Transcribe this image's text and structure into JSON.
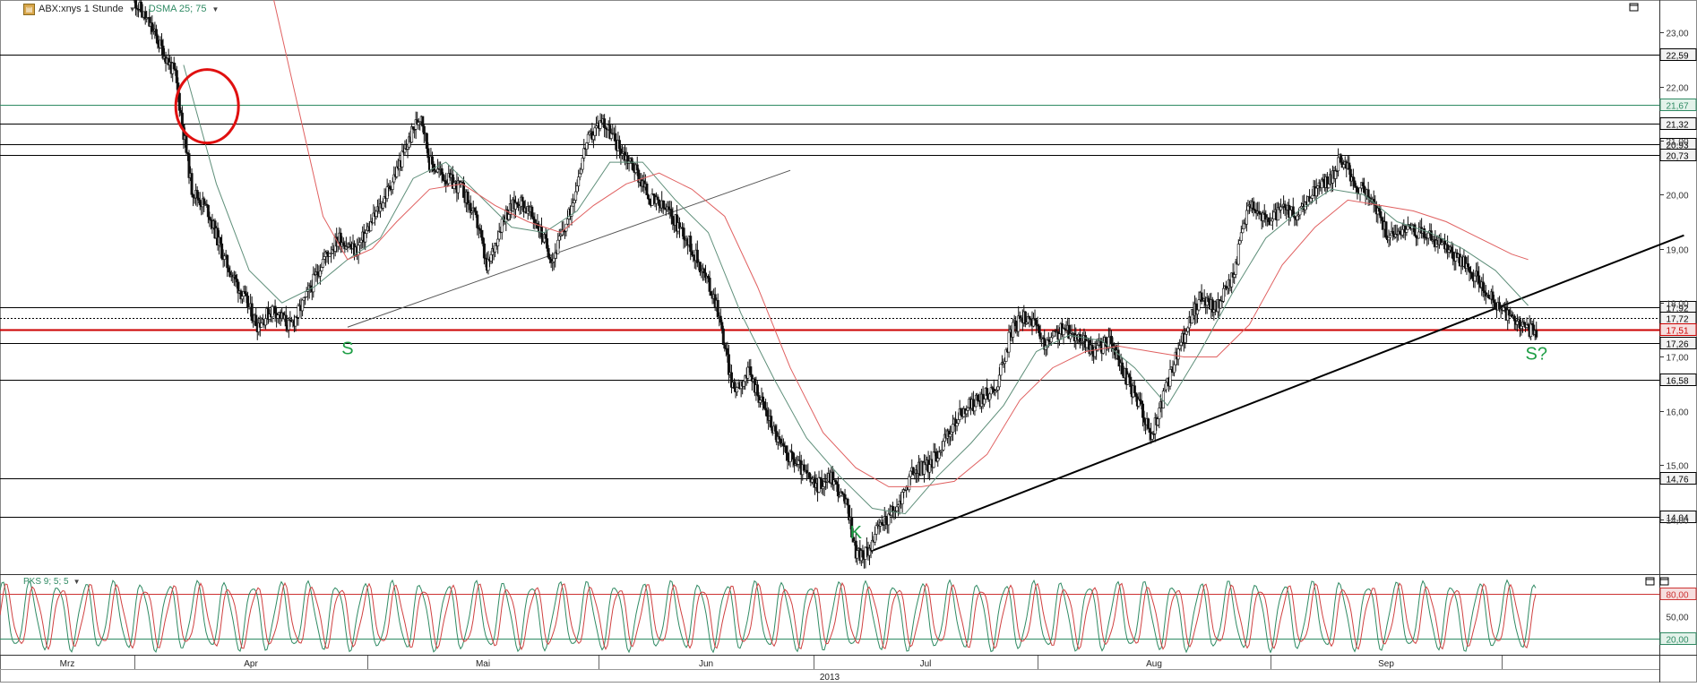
{
  "header": {
    "symbol_label": "ABX:xnys 1 Stunde",
    "indicator_label": "DSMA 25; 75",
    "oscillator_label": "PKS 9; 5; 5"
  },
  "chart_data": [
    {
      "type": "candlestick",
      "title": "ABX:xnys 1 Stunde",
      "ylim": [
        13.0,
        23.6
      ],
      "y_ticks": [
        "23,00",
        "22,00",
        "21,00",
        "20,00",
        "19,00",
        "18,00",
        "17,00",
        "16,00",
        "15,00",
        "14,00"
      ],
      "x_labels": [
        "Mrz",
        "Apr",
        "Mai",
        "Jun",
        "Jul",
        "Aug",
        "Sep"
      ],
      "year_label": "2013",
      "horizontal_levels": [
        {
          "label": "22,59",
          "value": 22.59,
          "color": "#000000"
        },
        {
          "label": "21,67",
          "value": 21.67,
          "color": "#2f8a63"
        },
        {
          "label": "21,32",
          "value": 21.32,
          "color": "#000000"
        },
        {
          "label": "20,93",
          "value": 20.93,
          "color": "#000000"
        },
        {
          "label": "20,73",
          "value": 20.73,
          "color": "#000000"
        },
        {
          "label": "17,92",
          "value": 17.92,
          "color": "#000000"
        },
        {
          "label": "17,72",
          "value": 17.72,
          "color": "#000000",
          "dotted": true
        },
        {
          "label": "17,51",
          "value": 17.51,
          "color": "#cc0000"
        },
        {
          "label": "17,26",
          "value": 17.26,
          "color": "#000000"
        },
        {
          "label": "16,58",
          "value": 16.58,
          "color": "#000000"
        },
        {
          "label": "14,76",
          "value": 14.76,
          "color": "#000000"
        },
        {
          "label": "14,04",
          "value": 14.04,
          "color": "#000000"
        }
      ],
      "price_path": [
        [
          0.0,
          23.6
        ],
        [
          2,
          23.1
        ],
        [
          5,
          22.2
        ],
        [
          7,
          20.1
        ],
        [
          9,
          19.7
        ],
        [
          11,
          18.8
        ],
        [
          13,
          18.2
        ],
        [
          15,
          17.6
        ],
        [
          17,
          17.9
        ],
        [
          19,
          17.55
        ],
        [
          21,
          18.1
        ],
        [
          23,
          18.8
        ],
        [
          25,
          19.2
        ],
        [
          27,
          18.95
        ],
        [
          29,
          19.5
        ],
        [
          31,
          20.1
        ],
        [
          33,
          20.8
        ],
        [
          34,
          21.2
        ],
        [
          35,
          21.5
        ],
        [
          36,
          20.6
        ],
        [
          38,
          20.3
        ],
        [
          40,
          20.1
        ],
        [
          42,
          19.4
        ],
        [
          43,
          18.6
        ],
        [
          45,
          19.6
        ],
        [
          47,
          19.9
        ],
        [
          49,
          19.5
        ],
        [
          51,
          18.8
        ],
        [
          53,
          19.6
        ],
        [
          55,
          20.9
        ],
        [
          57,
          21.4
        ],
        [
          59,
          20.9
        ],
        [
          61,
          20.5
        ],
        [
          63,
          19.9
        ],
        [
          65,
          19.7
        ],
        [
          67,
          19.3
        ],
        [
          69,
          18.7
        ],
        [
          71,
          18.0
        ],
        [
          73,
          16.4
        ],
        [
          75,
          16.7
        ],
        [
          77,
          16.0
        ],
        [
          79,
          15.3
        ],
        [
          81,
          15.0
        ],
        [
          83,
          14.6
        ],
        [
          85,
          14.8
        ],
        [
          87,
          14.2
        ],
        [
          88,
          13.4
        ],
        [
          89,
          13.3
        ],
        [
          91,
          13.9
        ],
        [
          93,
          14.2
        ],
        [
          95,
          14.9
        ],
        [
          97,
          15.0
        ],
        [
          99,
          15.5
        ],
        [
          101,
          16.0
        ],
        [
          103,
          16.2
        ],
        [
          105,
          16.4
        ],
        [
          107,
          17.5
        ],
        [
          109,
          17.8
        ],
        [
          111,
          17.2
        ],
        [
          113,
          17.5
        ],
        [
          115,
          17.4
        ],
        [
          117,
          17.1
        ],
        [
          119,
          17.3
        ],
        [
          121,
          16.6
        ],
        [
          123,
          16.0
        ],
        [
          124,
          15.5
        ],
        [
          126,
          16.5
        ],
        [
          128,
          17.4
        ],
        [
          130,
          18.1
        ],
        [
          132,
          17.9
        ],
        [
          134,
          18.5
        ],
        [
          136,
          19.9
        ],
        [
          138,
          19.5
        ],
        [
          140,
          19.7
        ],
        [
          142,
          19.6
        ],
        [
          144,
          20.1
        ],
        [
          146,
          20.3
        ],
        [
          147,
          20.7
        ],
        [
          149,
          20.2
        ],
        [
          151,
          19.9
        ],
        [
          153,
          19.2
        ],
        [
          155,
          19.4
        ],
        [
          157,
          19.3
        ],
        [
          159,
          19.1
        ],
        [
          161,
          18.9
        ],
        [
          163,
          18.6
        ],
        [
          165,
          18.2
        ],
        [
          167,
          17.8
        ],
        [
          169,
          17.6
        ],
        [
          171,
          17.45
        ]
      ],
      "sma_fast_path": [
        [
          6,
          22.4
        ],
        [
          10,
          20.2
        ],
        [
          14,
          18.6
        ],
        [
          18,
          18.0
        ],
        [
          22,
          18.3
        ],
        [
          26,
          18.8
        ],
        [
          30,
          19.2
        ],
        [
          34,
          20.3
        ],
        [
          38,
          20.6
        ],
        [
          42,
          20.0
        ],
        [
          46,
          19.4
        ],
        [
          50,
          19.3
        ],
        [
          54,
          19.7
        ],
        [
          58,
          20.6
        ],
        [
          62,
          20.6
        ],
        [
          66,
          19.9
        ],
        [
          70,
          19.3
        ],
        [
          74,
          17.8
        ],
        [
          78,
          16.6
        ],
        [
          82,
          15.5
        ],
        [
          86,
          14.8
        ],
        [
          90,
          14.2
        ],
        [
          94,
          14.1
        ],
        [
          98,
          14.8
        ],
        [
          102,
          15.4
        ],
        [
          106,
          16.1
        ],
        [
          110,
          17.1
        ],
        [
          114,
          17.4
        ],
        [
          118,
          17.3
        ],
        [
          122,
          16.8
        ],
        [
          126,
          16.1
        ],
        [
          130,
          17.1
        ],
        [
          134,
          18.2
        ],
        [
          138,
          19.2
        ],
        [
          142,
          19.7
        ],
        [
          146,
          20.1
        ],
        [
          150,
          20.0
        ],
        [
          154,
          19.5
        ],
        [
          158,
          19.3
        ],
        [
          162,
          19.0
        ],
        [
          166,
          18.6
        ],
        [
          170,
          17.95
        ]
      ],
      "sma_slow_path": [
        [
          17,
          23.6
        ],
        [
          20,
          21.6
        ],
        [
          23,
          19.6
        ],
        [
          26,
          18.8
        ],
        [
          29,
          19.0
        ],
        [
          32,
          19.5
        ],
        [
          36,
          20.1
        ],
        [
          40,
          20.2
        ],
        [
          44,
          19.8
        ],
        [
          48,
          19.5
        ],
        [
          52,
          19.3
        ],
        [
          56,
          19.8
        ],
        [
          60,
          20.2
        ],
        [
          64,
          20.4
        ],
        [
          68,
          20.1
        ],
        [
          72,
          19.6
        ],
        [
          76,
          18.3
        ],
        [
          80,
          16.8
        ],
        [
          84,
          15.6
        ],
        [
          88,
          14.95
        ],
        [
          92,
          14.6
        ],
        [
          96,
          14.6
        ],
        [
          100,
          14.7
        ],
        [
          104,
          15.2
        ],
        [
          108,
          16.2
        ],
        [
          112,
          16.8
        ],
        [
          116,
          17.1
        ],
        [
          120,
          17.2
        ],
        [
          124,
          17.1
        ],
        [
          128,
          17.0
        ],
        [
          132,
          17.0
        ],
        [
          136,
          17.6
        ],
        [
          140,
          18.7
        ],
        [
          144,
          19.4
        ],
        [
          148,
          19.9
        ],
        [
          152,
          19.8
        ],
        [
          156,
          19.7
        ],
        [
          160,
          19.5
        ],
        [
          164,
          19.2
        ],
        [
          168,
          18.9
        ],
        [
          170,
          18.8
        ]
      ],
      "trendlines": [
        {
          "from": [
            26,
            17.55
          ],
          "to": [
            80,
            20.45
          ],
          "color": "#555555"
        },
        {
          "from": [
            88,
            13.3
          ],
          "to": [
            189,
            19.25
          ],
          "color": "#000000"
        }
      ],
      "annotations": [
        {
          "text": "S",
          "x": 26,
          "y": 17.05,
          "color": "#1e9e45"
        },
        {
          "text": "K",
          "x": 88,
          "y": 13.65,
          "color": "#1e9e45"
        },
        {
          "text": "S?",
          "x": 171,
          "y": 16.95,
          "color": "#1e9e45"
        }
      ],
      "highlight_circle": {
        "x": 4.5,
        "y": 22.0,
        "color": "#e01010"
      }
    },
    {
      "type": "line",
      "title": "PKS 9; 5; 5",
      "ylim": [
        0,
        100
      ],
      "y_ticks": [
        "80,00",
        "50,00",
        "20,00"
      ],
      "overbought": 80,
      "oversold": 20,
      "series": [
        {
          "color": "#2f8a63",
          "cycle_days": 3.4,
          "amplitude": 42,
          "center": 50
        },
        {
          "color": "#d04040",
          "cycle_days": 3.4,
          "amplitude": 38,
          "center": 50,
          "lag_days": 0.5
        }
      ],
      "x_range": [
        0,
        171
      ]
    }
  ]
}
